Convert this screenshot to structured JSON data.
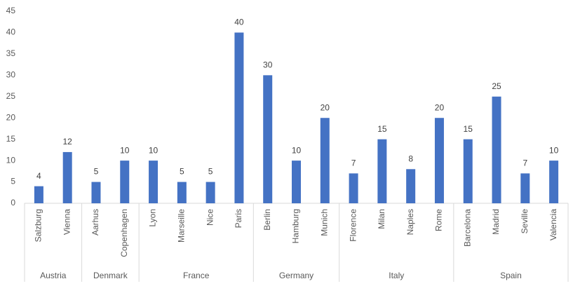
{
  "chart_data": {
    "type": "bar",
    "color": "#4472c4",
    "ylim": [
      0,
      45
    ],
    "yticks": [
      0,
      5,
      10,
      15,
      20,
      25,
      30,
      35,
      40,
      45
    ],
    "grid": false,
    "groups": [
      {
        "name": "Austria",
        "categories": [
          "Salzburg",
          "Vienna"
        ],
        "values": [
          4,
          12
        ]
      },
      {
        "name": "Denmark",
        "categories": [
          "Aarhus",
          "Copenhagen"
        ],
        "values": [
          5,
          10
        ]
      },
      {
        "name": "France",
        "categories": [
          "Lyon",
          "Marseille",
          "Nice",
          "Paris"
        ],
        "values": [
          10,
          5,
          5,
          40
        ]
      },
      {
        "name": "Germany",
        "categories": [
          "Berlin",
          "Hamburg",
          "Munich"
        ],
        "values": [
          30,
          10,
          20
        ]
      },
      {
        "name": "Italy",
        "categories": [
          "Florence",
          "Milan",
          "Naples",
          "Rome"
        ],
        "values": [
          7,
          15,
          8,
          20
        ]
      },
      {
        "name": "Spain",
        "categories": [
          "Barcelona",
          "Madrid",
          "Seville",
          "Valencia"
        ],
        "values": [
          15,
          25,
          7,
          10
        ]
      }
    ]
  }
}
